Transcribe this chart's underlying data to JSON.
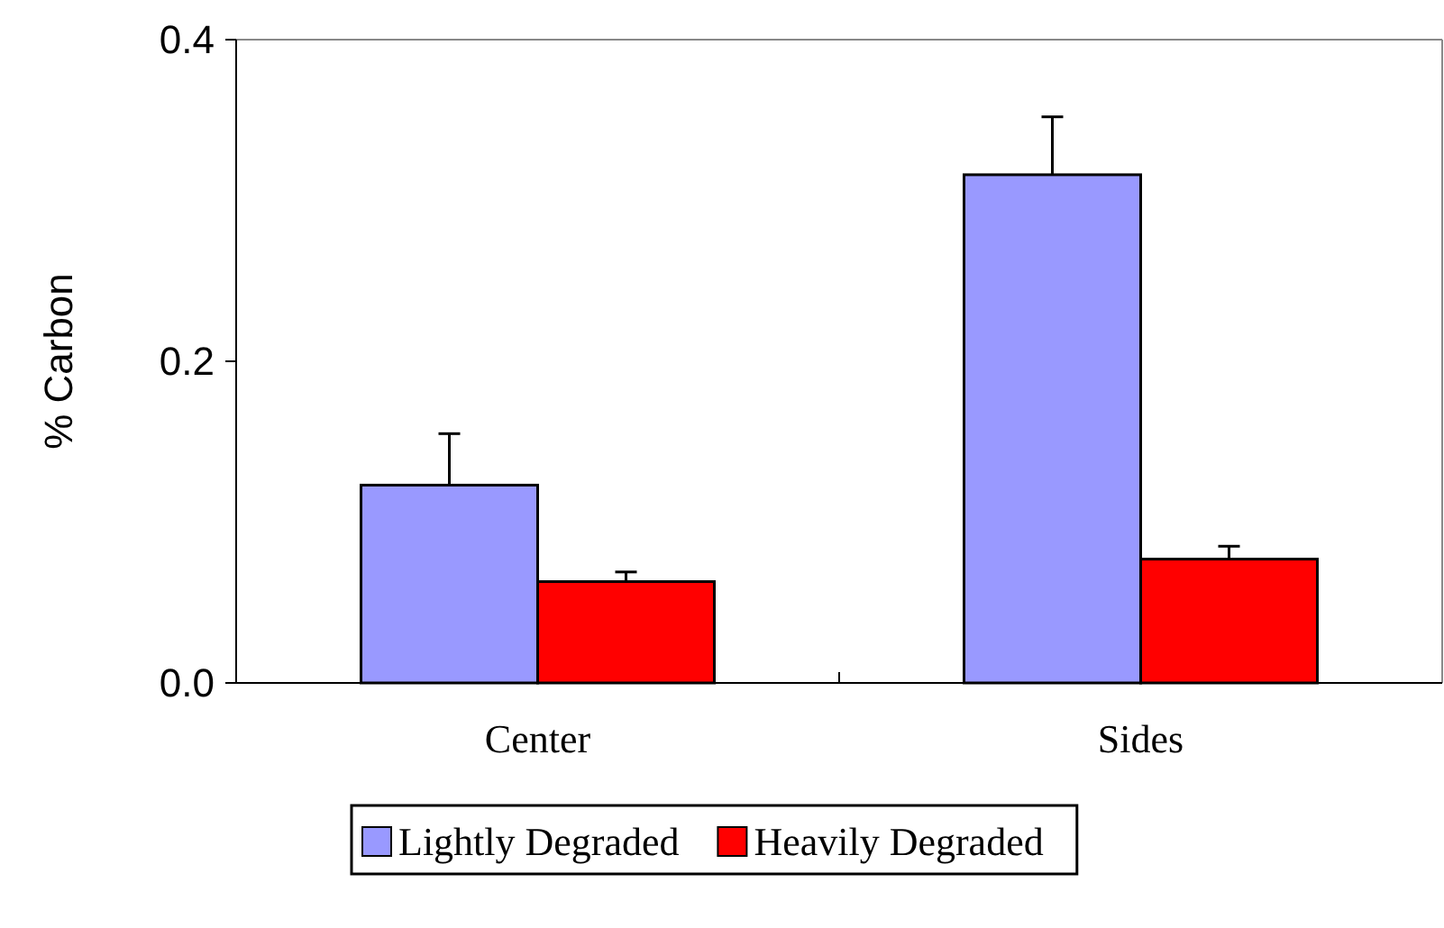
{
  "chart_data": {
    "type": "bar",
    "ylabel": "% Carbon",
    "categories": [
      "Center",
      "Sides"
    ],
    "series": [
      {
        "name": "Lightly Degraded",
        "color": "#9999ff",
        "values": [
          0.123,
          0.316
        ],
        "errors": [
          [
            0.123,
            0.155
          ],
          [
            0.316,
            0.352
          ]
        ]
      },
      {
        "name": "Heavily Degraded",
        "color": "#ff0000",
        "values": [
          0.063,
          0.077
        ],
        "errors": [
          [
            0.063,
            0.069
          ],
          [
            0.077,
            0.085
          ]
        ]
      }
    ],
    "ylim": [
      0,
      0.4
    ],
    "yticks": [
      {
        "value": 0,
        "label": "0.0"
      },
      {
        "value": 0.2,
        "label": "0.2"
      },
      {
        "value": 0.4,
        "label": "0.4"
      }
    ],
    "legend": "bottom"
  }
}
